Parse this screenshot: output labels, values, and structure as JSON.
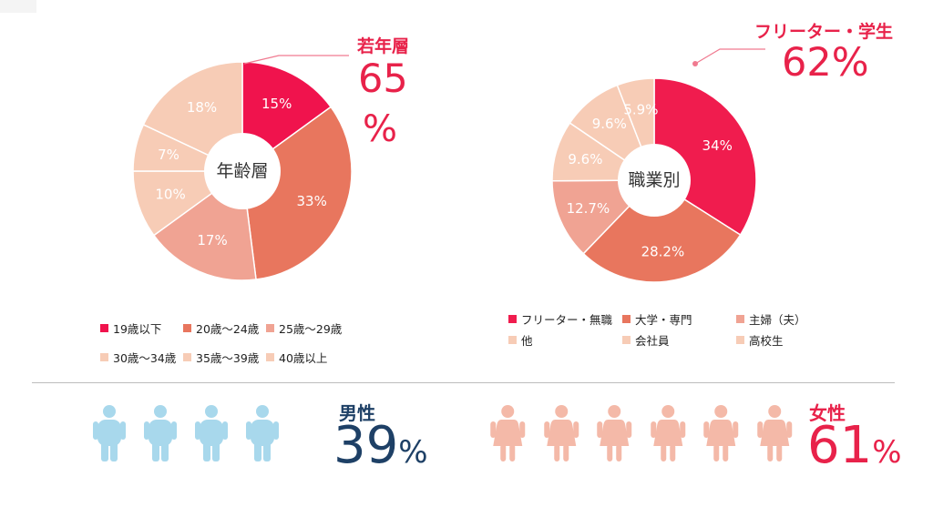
{
  "chart_data": [
    {
      "type": "pie",
      "center_label": "年齢層",
      "slices": [
        {
          "label": "19歳以下",
          "value": 15,
          "display": "15%",
          "color": "#f0134d",
          "text_color": "#ffffff"
        },
        {
          "label": "20歳～24歳",
          "value": 33,
          "display": "33%",
          "color": "#e8765e",
          "text_color": "#ffffff"
        },
        {
          "label": "25歳～29歳",
          "value": 17,
          "display": "17%",
          "color": "#f0a393",
          "text_color": "#ffffff"
        },
        {
          "label": "30歳～34歳",
          "value": 10,
          "display": "10%",
          "color": "#f7ccb6",
          "text_color": "#ffffff"
        },
        {
          "label": "35歳～39歳",
          "value": 7,
          "display": "7%",
          "color": "#f7ccb6",
          "text_color": "#ffffff"
        },
        {
          "label": "40歳以上",
          "value": 18,
          "display": "18%",
          "color": "#f7ccb6",
          "text_color": "#ffffff"
        }
      ],
      "legend": [
        "19歳以下",
        "20歳～24歳",
        "25歳～29歳",
        "30歳～34歳",
        "35歳～39歳",
        "40歳以上"
      ],
      "callout": {
        "label": "若年層",
        "value_number": "65",
        "value_unit": "%"
      }
    },
    {
      "type": "pie",
      "center_label": "職業別",
      "slices": [
        {
          "label": "フリーター・無職",
          "value": 34,
          "display": "34%",
          "color": "#f01c4e",
          "text_color": "#ffffff"
        },
        {
          "label": "大学・専門",
          "value": 28.2,
          "display": "28.2%",
          "color": "#e8765e",
          "text_color": "#ffffff"
        },
        {
          "label": "主婦（夫）",
          "value": 12.7,
          "display": "12.7%",
          "color": "#f0a393",
          "text_color": "#ffffff"
        },
        {
          "label": "他",
          "value": 9.6,
          "display": "9.6%",
          "color": "#f7ccb6",
          "text_color": "#ffffff"
        },
        {
          "label": "会社員",
          "value": 9.6,
          "display": "9.6%",
          "color": "#f7ccb6",
          "text_color": "#ffffff"
        },
        {
          "label": "高校生",
          "value": 5.9,
          "display": "5.9%",
          "color": "#f7ccb6",
          "text_color": "#ffffff"
        }
      ],
      "legend": [
        "フリーター・無職",
        "大学・専門",
        "主婦（夫）",
        "他",
        "会社員",
        "高校生"
      ],
      "callout": {
        "label": "フリーター・学生",
        "value": "62%"
      }
    }
  ],
  "gender": {
    "male": {
      "label": "男性",
      "value_number": "39",
      "value_unit": "%",
      "color": "#1e4066",
      "icon_color": "#a8d8ec",
      "icon": "person-icon"
    },
    "female": {
      "label": "女性",
      "value_number": "61",
      "value_unit": "%",
      "color": "#e8224a",
      "icon_color": "#f4b9a8",
      "icon": "person-dress-icon"
    }
  },
  "colors": {
    "accent_red": "#e8224a",
    "callout_line": "#f07a90",
    "divider": "#bdbdbd"
  }
}
